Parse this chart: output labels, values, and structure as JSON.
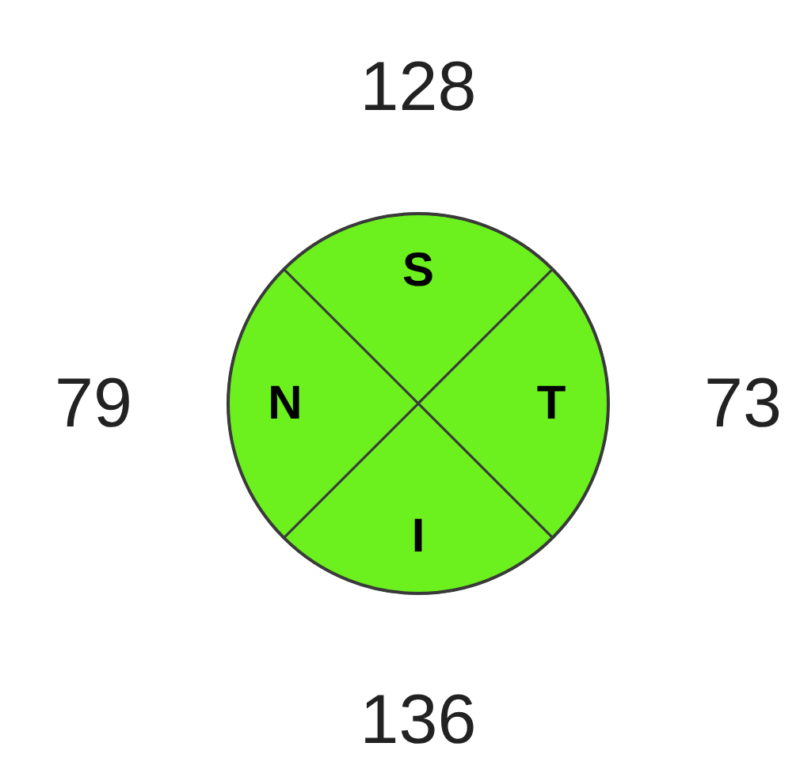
{
  "chart_data": {
    "type": "other",
    "categories": [
      "S",
      "T",
      "I",
      "N"
    ],
    "values": [
      128,
      73,
      136,
      79
    ],
    "colors": [
      "#6cf01e",
      "#6cf01e",
      "#6cf01e",
      "#6cf01e"
    ],
    "data_labels": true
  }
}
